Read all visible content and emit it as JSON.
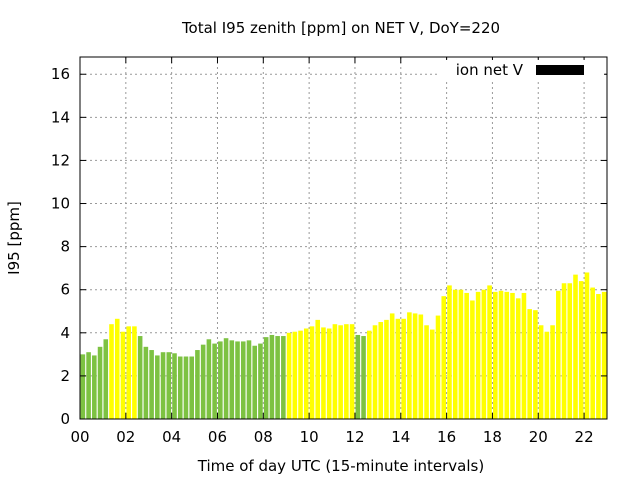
{
  "chart_data": {
    "type": "bar",
    "title": "Total I95 zenith [ppm] on NET V, DoY=220",
    "xlabel": "Time of day UTC (15-minute intervals)",
    "ylabel": "I95 [ppm]",
    "xlim": [
      0,
      23
    ],
    "ylim": [
      0,
      16.8
    ],
    "x_ticks": [
      {
        "v": 0,
        "label": "00"
      },
      {
        "v": 2,
        "label": "02"
      },
      {
        "v": 4,
        "label": "04"
      },
      {
        "v": 6,
        "label": "06"
      },
      {
        "v": 8,
        "label": "08"
      },
      {
        "v": 10,
        "label": "10"
      },
      {
        "v": 12,
        "label": "12"
      },
      {
        "v": 14,
        "label": "14"
      },
      {
        "v": 16,
        "label": "16"
      },
      {
        "v": 18,
        "label": "18"
      },
      {
        "v": 20,
        "label": "20"
      },
      {
        "v": 22,
        "label": "22"
      }
    ],
    "y_ticks": [
      {
        "v": 0,
        "label": "0"
      },
      {
        "v": 2,
        "label": "2"
      },
      {
        "v": 4,
        "label": "4"
      },
      {
        "v": 6,
        "label": "6"
      },
      {
        "v": 8,
        "label": "8"
      },
      {
        "v": 10,
        "label": "10"
      },
      {
        "v": 12,
        "label": "12"
      },
      {
        "v": 14,
        "label": "14"
      },
      {
        "v": 16,
        "label": "16"
      }
    ],
    "grid": true,
    "legend": {
      "label": "ion net V",
      "color": "#000000",
      "position": "top-right"
    },
    "colors": {
      "green": "#7dc242",
      "yellow": "#ffff00"
    },
    "x_step": 0.25,
    "values": [
      3.0,
      3.1,
      2.95,
      3.35,
      3.7,
      4.4,
      4.65,
      4.05,
      4.3,
      4.3,
      3.85,
      3.35,
      3.2,
      2.95,
      3.1,
      3.1,
      3.05,
      2.9,
      2.9,
      2.9,
      3.2,
      3.45,
      3.7,
      3.5,
      3.6,
      3.75,
      3.65,
      3.6,
      3.6,
      3.65,
      3.4,
      3.5,
      3.8,
      3.9,
      3.85,
      3.85,
      4.0,
      4.05,
      4.1,
      4.2,
      4.3,
      4.6,
      4.25,
      4.2,
      4.4,
      4.35,
      4.4,
      4.4,
      3.9,
      3.85,
      4.1,
      4.35,
      4.5,
      4.6,
      4.9,
      4.65,
      4.65,
      4.95,
      4.9,
      4.85,
      4.35,
      4.15,
      4.8,
      5.7,
      6.2,
      6.0,
      6.0,
      5.85,
      5.5,
      5.9,
      6.0,
      6.2,
      5.9,
      5.95,
      5.9,
      5.85,
      5.6,
      5.85,
      5.1,
      5.05,
      4.35,
      4.05,
      4.35,
      5.95,
      6.3,
      6.3,
      6.7,
      6.4,
      6.8,
      6.1,
      5.8,
      5.9
    ],
    "bar_colors": [
      "green",
      "green",
      "green",
      "green",
      "green",
      "yellow",
      "yellow",
      "yellow",
      "yellow",
      "yellow",
      "green",
      "green",
      "green",
      "green",
      "green",
      "green",
      "green",
      "green",
      "green",
      "green",
      "green",
      "green",
      "green",
      "green",
      "green",
      "green",
      "green",
      "green",
      "green",
      "green",
      "green",
      "green",
      "green",
      "green",
      "green",
      "green",
      "yellow",
      "yellow",
      "yellow",
      "yellow",
      "yellow",
      "yellow",
      "yellow",
      "yellow",
      "yellow",
      "yellow",
      "yellow",
      "yellow",
      "green",
      "green",
      "yellow",
      "yellow",
      "yellow",
      "yellow",
      "yellow",
      "yellow",
      "yellow",
      "yellow",
      "yellow",
      "yellow",
      "yellow",
      "yellow",
      "yellow",
      "yellow",
      "yellow",
      "yellow",
      "yellow",
      "yellow",
      "yellow",
      "yellow",
      "yellow",
      "yellow",
      "yellow",
      "yellow",
      "yellow",
      "yellow",
      "yellow",
      "yellow",
      "yellow",
      "yellow",
      "yellow",
      "yellow",
      "yellow",
      "yellow",
      "yellow",
      "yellow",
      "yellow",
      "yellow",
      "yellow",
      "yellow",
      "yellow",
      "yellow"
    ]
  }
}
